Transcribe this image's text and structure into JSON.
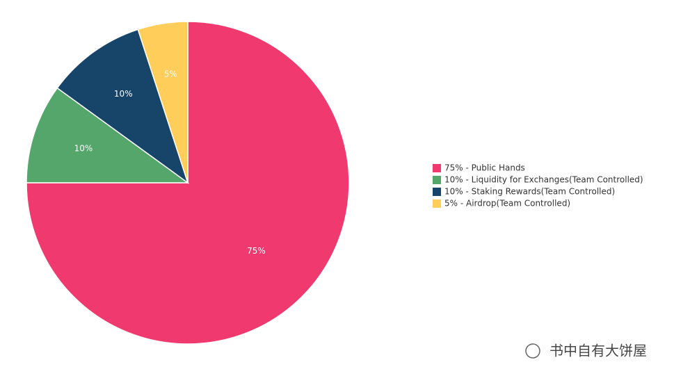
{
  "chart_data": {
    "type": "pie",
    "categories": [
      "75% - Public Hands",
      "10% - Liquidity for Exchanges(Team Controlled)",
      "10% - Staking Rewards(Team Controlled)",
      "5% - Airdrop(Team Controlled)"
    ],
    "values": [
      75,
      10,
      10,
      5
    ],
    "value_labels": [
      "75%",
      "10%",
      "10%",
      "5%"
    ],
    "colors": [
      "#f03a6f",
      "#55a66a",
      "#174569",
      "#fecd5a"
    ],
    "legend": "right"
  },
  "watermark": "书中自有大饼屋"
}
